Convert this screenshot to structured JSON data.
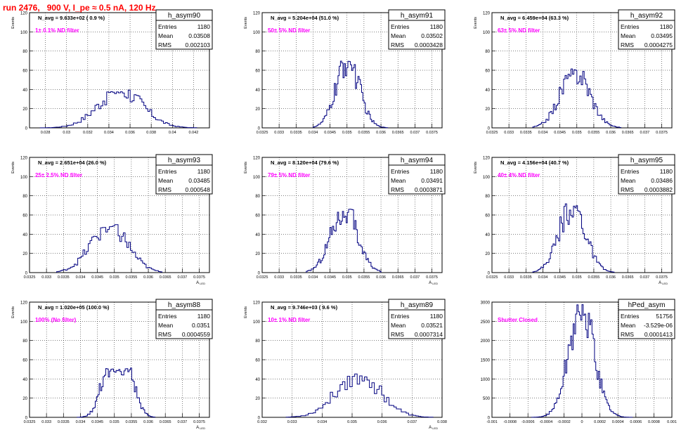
{
  "page": {
    "title": "run 2476,   900 V, I_pe ≈ 0.5 nA, 120 Hz",
    "title_color": "#ff0000",
    "histogram_color": "#000080",
    "annotation_color": "#ff00ff"
  },
  "stat_labels": {
    "entries": "Entries",
    "mean": "Mean",
    "rms": "RMS"
  },
  "chart_data": [
    {
      "type": "histogram",
      "name": "h_asym90",
      "ylabel": "Events",
      "xlabel": "",
      "xlim": [
        0.0265,
        0.0435
      ],
      "ylim": [
        0,
        120
      ],
      "xticks": [
        "0.028",
        "0.03",
        "0.032",
        "0.034",
        "0.036",
        "0.038",
        "0.04",
        "0.042"
      ],
      "xtick_values": [
        0.028,
        0.03,
        0.032,
        0.034,
        0.036,
        0.038,
        0.04,
        0.042
      ],
      "yticks": [
        0,
        20,
        40,
        60,
        80,
        100,
        120
      ],
      "n_avg": "N_avg = 9.633e+02 ( 0.9 %)",
      "filter": "1± 0.1% ND filter",
      "stats": {
        "entries": "1180",
        "mean": "0.03508",
        "rms": "0.002103"
      },
      "dist": {
        "mean": 0.03508,
        "rms": 0.002103,
        "peak": 40,
        "xmin": 0.0275,
        "xmax": 0.0423,
        "bins": 80
      }
    },
    {
      "type": "histogram",
      "name": "h_asym91",
      "ylabel": "Events",
      "xlabel": "",
      "xlim": [
        0.0325,
        0.0378
      ],
      "ylim": [
        0,
        120
      ],
      "xticks": [
        "0.0325",
        "0.033",
        "0.0335",
        "0.034",
        "0.0345",
        "0.035",
        "0.0355",
        "0.036",
        "0.0365",
        "0.037",
        "0.0375"
      ],
      "xtick_values": [
        0.0325,
        0.033,
        0.0335,
        0.034,
        0.0345,
        0.035,
        0.0355,
        0.036,
        0.0365,
        0.037,
        0.0375
      ],
      "yticks": [
        0,
        20,
        40,
        60,
        80,
        100,
        120
      ],
      "n_avg": "N_avg = 5.204e+04 (51.0 %)",
      "filter": "50± 5% ND filter",
      "stats": {
        "entries": "1180",
        "mean": "0.03502",
        "rms": "0.0003428"
      },
      "dist": {
        "mean": 0.03502,
        "rms": 0.0003428,
        "peak": 72,
        "xmin": 0.034,
        "xmax": 0.0362,
        "bins": 60
      }
    },
    {
      "type": "histogram",
      "name": "h_asym92",
      "ylabel": "Events",
      "xlabel": "",
      "xlim": [
        0.0325,
        0.0378
      ],
      "ylim": [
        0,
        120
      ],
      "xticks": [
        "0.0325",
        "0.033",
        "0.0335",
        "0.034",
        "0.0345",
        "0.035",
        "0.0355",
        "0.036",
        "0.0365",
        "0.037",
        "0.0375"
      ],
      "xtick_values": [
        0.0325,
        0.033,
        0.0335,
        0.034,
        0.0345,
        0.035,
        0.0355,
        0.036,
        0.0365,
        0.037,
        0.0375
      ],
      "yticks": [
        0,
        20,
        40,
        60,
        80,
        100,
        120
      ],
      "n_avg": "N_avg = 6.459e+04 (63.3 %)",
      "filter": "63± 5% ND filter",
      "stats": {
        "entries": "1180",
        "mean": "0.03495",
        "rms": "0.0004275"
      },
      "dist": {
        "mean": 0.03495,
        "rms": 0.0004275,
        "peak": 62,
        "xmin": 0.0337,
        "xmax": 0.0363,
        "bins": 60
      }
    },
    {
      "type": "histogram",
      "name": "h_asym93",
      "ylabel": "Events",
      "xlabel": "A_LED",
      "xlim": [
        0.0325,
        0.0378
      ],
      "ylim": [
        0,
        120
      ],
      "xticks": [
        "0.0325",
        "0.033",
        "0.0335",
        "0.034",
        "0.0345",
        "0.035",
        "0.0355",
        "0.036",
        "0.0365",
        "0.037",
        "0.0375"
      ],
      "xtick_values": [
        0.0325,
        0.033,
        0.0335,
        0.034,
        0.0345,
        0.035,
        0.0355,
        0.036,
        0.0365,
        0.037,
        0.0375
      ],
      "yticks": [
        0,
        20,
        40,
        60,
        80,
        100,
        120
      ],
      "n_avg": "N_avg = 2.651e+04 (26.0 %)",
      "filter": "25± 2.5% ND filter",
      "stats": {
        "entries": "1180",
        "mean": "0.03485",
        "rms": "0.000548"
      },
      "dist": {
        "mean": 0.03485,
        "rms": 0.000548,
        "peak": 50,
        "xmin": 0.0333,
        "xmax": 0.0364,
        "bins": 60
      }
    },
    {
      "type": "histogram",
      "name": "h_asym94",
      "ylabel": "Events",
      "xlabel": "A_LED",
      "xlim": [
        0.0325,
        0.0378
      ],
      "ylim": [
        0,
        120
      ],
      "xticks": [
        "0.0325",
        "0.033",
        "0.0335",
        "0.034",
        "0.0345",
        "0.035",
        "0.0355",
        "0.036",
        "0.0365",
        "0.037",
        "0.0375"
      ],
      "xtick_values": [
        0.0325,
        0.033,
        0.0335,
        0.034,
        0.0345,
        0.035,
        0.0355,
        0.036,
        0.0365,
        0.037,
        0.0375
      ],
      "yticks": [
        0,
        20,
        40,
        60,
        80,
        100,
        120
      ],
      "n_avg": "N_avg = 8.120e+04 (79.6 %)",
      "filter": "79± 5% ND filter",
      "stats": {
        "entries": "1180",
        "mean": "0.03491",
        "rms": "0.0003871"
      },
      "dist": {
        "mean": 0.03491,
        "rms": 0.0003871,
        "peak": 68,
        "xmin": 0.0338,
        "xmax": 0.036,
        "bins": 60
      }
    },
    {
      "type": "histogram",
      "name": "h_asym95",
      "ylabel": "Events",
      "xlabel": "A_LED",
      "xlim": [
        0.0325,
        0.0378
      ],
      "ylim": [
        0,
        120
      ],
      "xticks": [
        "0.0325",
        "0.033",
        "0.0335",
        "0.034",
        "0.0345",
        "0.035",
        "0.0355",
        "0.036",
        "0.0365",
        "0.037",
        "0.0375"
      ],
      "xtick_values": [
        0.0325,
        0.033,
        0.0335,
        0.034,
        0.0345,
        0.035,
        0.0355,
        0.036,
        0.0365,
        0.037,
        0.0375
      ],
      "yticks": [
        0,
        20,
        40,
        60,
        80,
        100,
        120
      ],
      "n_avg": "N_avg = 4.156e+04 (40.7 %)",
      "filter": "40± 4% ND filter",
      "stats": {
        "entries": "1180",
        "mean": "0.03486",
        "rms": "0.0003882"
      },
      "dist": {
        "mean": 0.03486,
        "rms": 0.0003882,
        "peak": 72,
        "xmin": 0.0337,
        "xmax": 0.0361,
        "bins": 60
      }
    },
    {
      "type": "histogram",
      "name": "h_asym88",
      "ylabel": "Events",
      "xlabel": "A_LED",
      "xlim": [
        0.0325,
        0.0378
      ],
      "ylim": [
        0,
        120
      ],
      "xticks": [
        "0.0325",
        "0.033",
        "0.0335",
        "0.034",
        "0.0345",
        "0.035",
        "0.0355",
        "0.036",
        "0.0365",
        "0.037",
        "0.0375"
      ],
      "xtick_values": [
        0.0325,
        0.033,
        0.0335,
        0.034,
        0.0345,
        0.035,
        0.0355,
        0.036,
        0.0365,
        0.037,
        0.0375
      ],
      "yticks": [
        0,
        20,
        40,
        60,
        80,
        100,
        120
      ],
      "n_avg": "N_avg = 1.020e+05 (100.0 %)",
      "filter": "100% (No filter)",
      "stats": {
        "entries": "1180",
        "mean": "0.0351",
        "rms": "0.0004559"
      },
      "dist": {
        "mean": 0.0351,
        "rms": 0.0004559,
        "peak": 52,
        "bimodal": true,
        "xmin": 0.0339,
        "xmax": 0.0362,
        "bins": 60
      }
    },
    {
      "type": "histogram",
      "name": "h_asym89",
      "ylabel": "Events",
      "xlabel": "A_LED",
      "xlim": [
        0.032,
        0.038
      ],
      "ylim": [
        0,
        120
      ],
      "xticks": [
        "0.032",
        "0.033",
        "0.034",
        "0.035",
        "0.036",
        "0.037",
        "0.038"
      ],
      "xtick_values": [
        0.032,
        0.033,
        0.034,
        0.035,
        0.036,
        0.037,
        0.038
      ],
      "yticks": [
        0,
        20,
        40,
        60,
        80,
        100,
        120
      ],
      "n_avg": "N_avg = 9.746e+03 ( 9.6 %)",
      "filter": "10± 1% ND filter",
      "stats": {
        "entries": "1180",
        "mean": "0.03521",
        "rms": "0.0007314"
      },
      "dist": {
        "mean": 0.03521,
        "rms": 0.0007314,
        "peak": 46,
        "xmin": 0.0328,
        "xmax": 0.0377,
        "bins": 60
      }
    },
    {
      "type": "histogram",
      "name": "hPed_asym",
      "ylabel": "",
      "xlabel": "",
      "xlim": [
        -0.001,
        0.001
      ],
      "ylim": [
        0,
        3000
      ],
      "xticks": [
        "-0.001",
        "-0.0008",
        "-0.0006",
        "-0.0004",
        "-0.0002",
        "0",
        "0.0002",
        "0.0004",
        "0.0006",
        "0.0008",
        "0.001"
      ],
      "xtick_values": [
        -0.001,
        -0.0008,
        -0.0006,
        -0.0004,
        -0.0002,
        0,
        0.0002,
        0.0004,
        0.0006,
        0.0008,
        0.001
      ],
      "yticks": [
        0,
        500,
        1000,
        1500,
        2000,
        2500,
        3000
      ],
      "n_avg": "",
      "filter": "Shutter Closed",
      "stats": {
        "entries": "51756",
        "mean": "-3.529e-06",
        "rms": "0.0001413"
      },
      "dist": {
        "mean": -3.5e-06,
        "rms": 0.0001413,
        "peak": 2950,
        "xmin": -0.00056,
        "xmax": 0.00056,
        "bins": 80
      }
    }
  ]
}
